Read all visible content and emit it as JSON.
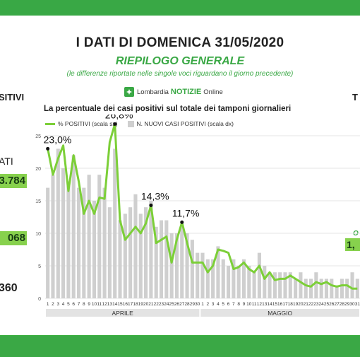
{
  "header": {
    "title": "I DATI DI DOMENICA 31/05/2020",
    "subtitle": "RIEPILOGO GENERALE",
    "note": "(le differenze riportate nelle singole voci riguardano il giorno precedente)",
    "brand_prefix": "Lombardia",
    "brand_strong": "NOTIZIE",
    "brand_suffix": "Online"
  },
  "side_left": {
    "heading": "SITIVI",
    "label": "ATI",
    "value_1": "3.784",
    "value_2": "068",
    "value_3": "360"
  },
  "side_right": {
    "heading": "T",
    "small": "O",
    "value": "1,"
  },
  "colors": {
    "accent_green": "#3aa845",
    "line_green": "#7ccf38",
    "bar_gray": "#cfcfcf"
  },
  "chart_data": {
    "type": "bar+line",
    "title": "La percentuale dei casi positivi sul totale dei tamponi giornalieri",
    "legend": [
      "% POSITIVI (scala sx)",
      "N. NUOVI CASI POSITIVI (scala dx)"
    ],
    "legend_placement": "top-left",
    "y_left_ticks": [
      "0",
      "5",
      "10",
      "15",
      "20",
      "25"
    ],
    "ylim": [
      0,
      25
    ],
    "x_labels": [
      "1",
      "2",
      "3",
      "4",
      "5",
      "6",
      "7",
      "8",
      "9",
      "10",
      "11",
      "12",
      "13",
      "14",
      "15",
      "16",
      "17",
      "18",
      "19",
      "20",
      "21",
      "22",
      "23",
      "24",
      "25",
      "26",
      "27",
      "28",
      "29",
      "30",
      "1",
      "2",
      "3",
      "4",
      "5",
      "6",
      "7",
      "8",
      "9",
      "10",
      "11",
      "12",
      "13",
      "14",
      "15",
      "16",
      "17",
      "18",
      "19",
      "20",
      "21",
      "22",
      "23",
      "24",
      "25",
      "26",
      "27",
      "28",
      "29",
      "30",
      "31"
    ],
    "x_labels_shown": [
      "1",
      "2",
      "3",
      "4",
      "6",
      "8",
      "10",
      "11",
      "12",
      "13",
      "14",
      "15",
      "16",
      "17",
      "18",
      "19",
      "20",
      "21",
      "22",
      "23",
      "24",
      "25",
      "26",
      "27",
      "28",
      "29",
      "30",
      "1",
      "2",
      "3",
      "4",
      "5",
      "6",
      "7",
      "8",
      "9",
      "10",
      "11",
      "12",
      "13",
      "14",
      "15",
      "16",
      "17",
      "18",
      "19",
      "20",
      "21",
      "22",
      "23",
      "24",
      "25",
      "26",
      "27",
      "28",
      "29",
      "30",
      "31"
    ],
    "x_groups": [
      {
        "label": "APRILE",
        "start": 0,
        "end": 29
      },
      {
        "label": "MAGGIO",
        "start": 30,
        "end": 60
      }
    ],
    "positive_pct": [
      23.0,
      19.0,
      21.5,
      23.5,
      16.5,
      22.0,
      18.0,
      13.0,
      15.0,
      13.0,
      15.5,
      15.3,
      24.0,
      26.8,
      12.0,
      9.0,
      10.0,
      11.0,
      10.0,
      11.5,
      14.3,
      8.5,
      9.0,
      9.5,
      5.5,
      9.0,
      11.7,
      8.5,
      5.5,
      5.5,
      5.5,
      4.0,
      5.0,
      7.5,
      7.3,
      7.0,
      4.5,
      4.8,
      5.5,
      4.5,
      4.0,
      5.0,
      3.0,
      4.0,
      2.8,
      3.0,
      3.0,
      3.5,
      3.0,
      2.5,
      2.0,
      1.8,
      2.5,
      2.2,
      2.5,
      2.0,
      1.8,
      2.0,
      2.0,
      1.5,
      1.5
    ],
    "new_cases_relative": [
      17,
      19,
      23,
      20,
      18,
      22,
      17,
      17,
      19,
      15,
      19,
      17,
      14,
      23,
      12,
      13,
      14,
      16,
      13,
      14,
      15,
      11,
      12,
      12,
      10,
      10,
      11,
      10,
      9,
      7,
      7,
      6,
      6,
      8,
      6,
      5,
      6,
      5,
      6,
      5,
      4,
      7,
      5,
      4,
      4,
      4,
      4,
      4,
      3,
      4,
      3,
      3,
      4,
      3,
      3,
      3,
      2,
      3,
      3,
      4,
      3
    ],
    "annotations": [
      {
        "index": 0,
        "label": "23,0%"
      },
      {
        "index": 13,
        "label": "26,8%"
      },
      {
        "index": 20,
        "label": "14,3%"
      },
      {
        "index": 26,
        "label": "11,7%"
      }
    ]
  }
}
